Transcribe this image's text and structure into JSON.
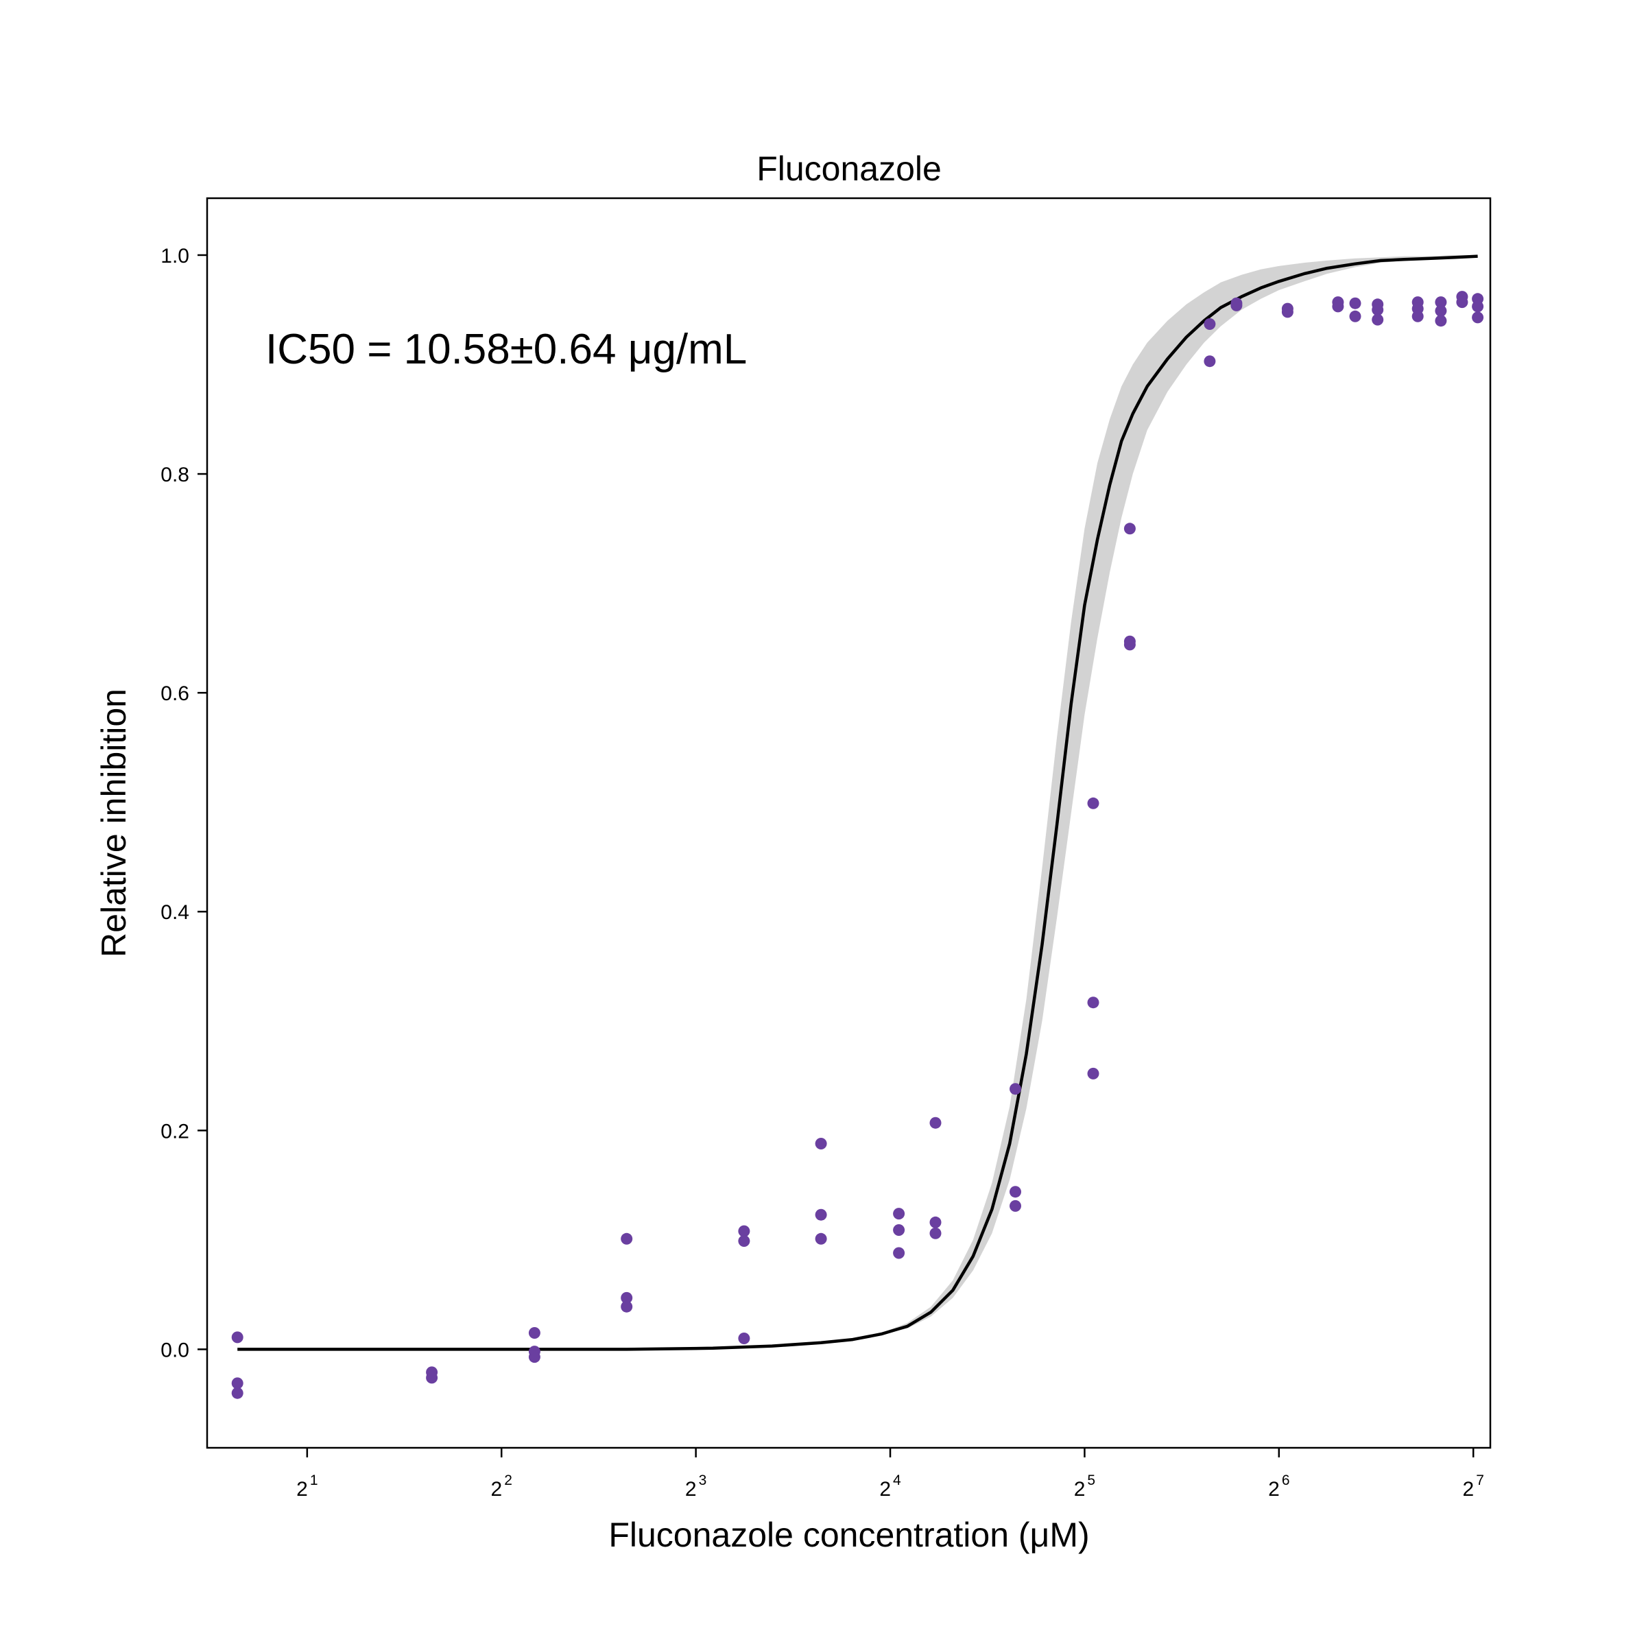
{
  "chart_data": {
    "type": "scatter",
    "title": "Fluconazole",
    "xlabel": "Fluconazole concentration (μM)",
    "ylabel": "Relative inhibition",
    "annotation": "IC50 = 10.58±0.64 μg/mL",
    "x_scale": "log2",
    "xlim": [
      1.4,
      136
    ],
    "ylim": [
      -0.09,
      1.052
    ],
    "x_ticks": [
      {
        "base": "2",
        "exp": "1",
        "value": 2
      },
      {
        "base": "2",
        "exp": "2",
        "value": 4
      },
      {
        "base": "2",
        "exp": "3",
        "value": 8
      },
      {
        "base": "2",
        "exp": "4",
        "value": 16
      },
      {
        "base": "2",
        "exp": "5",
        "value": 32
      },
      {
        "base": "2",
        "exp": "6",
        "value": 64
      },
      {
        "base": "2",
        "exp": "7",
        "value": 128
      }
    ],
    "y_ticks": [
      {
        "label": "0.0",
        "value": 0.0
      },
      {
        "label": "0.2",
        "value": 0.2
      },
      {
        "label": "0.4",
        "value": 0.4
      },
      {
        "label": "0.6",
        "value": 0.6
      },
      {
        "label": "0.8",
        "value": 0.8
      },
      {
        "label": "1.0",
        "value": 1.0
      }
    ],
    "grid": false,
    "colors": {
      "points": "#6a3fa0",
      "fit": "#000000",
      "band": "#d3d3d3"
    },
    "points": [
      {
        "x": 1.56,
        "y": 0.011
      },
      {
        "x": 1.56,
        "y": -0.031
      },
      {
        "x": 1.56,
        "y": -0.04
      },
      {
        "x": 3.12,
        "y": -0.021
      },
      {
        "x": 3.12,
        "y": -0.026
      },
      {
        "x": 4.5,
        "y": 0.015
      },
      {
        "x": 4.5,
        "y": -0.002
      },
      {
        "x": 4.5,
        "y": -0.007
      },
      {
        "x": 6.25,
        "y": 0.101
      },
      {
        "x": 6.25,
        "y": 0.047
      },
      {
        "x": 6.25,
        "y": 0.039
      },
      {
        "x": 9.5,
        "y": 0.108
      },
      {
        "x": 9.5,
        "y": 0.099
      },
      {
        "x": 9.5,
        "y": 0.01
      },
      {
        "x": 12.5,
        "y": 0.188
      },
      {
        "x": 12.5,
        "y": 0.123
      },
      {
        "x": 12.5,
        "y": 0.101
      },
      {
        "x": 16.5,
        "y": 0.124
      },
      {
        "x": 16.5,
        "y": 0.109
      },
      {
        "x": 16.5,
        "y": 0.088
      },
      {
        "x": 18.8,
        "y": 0.207
      },
      {
        "x": 18.8,
        "y": 0.116
      },
      {
        "x": 18.8,
        "y": 0.106
      },
      {
        "x": 25,
        "y": 0.238
      },
      {
        "x": 25,
        "y": 0.144
      },
      {
        "x": 25,
        "y": 0.131
      },
      {
        "x": 33,
        "y": 0.499
      },
      {
        "x": 33,
        "y": 0.317
      },
      {
        "x": 33,
        "y": 0.252
      },
      {
        "x": 37.6,
        "y": 0.75
      },
      {
        "x": 37.6,
        "y": 0.647
      },
      {
        "x": 37.6,
        "y": 0.644
      },
      {
        "x": 50,
        "y": 0.937
      },
      {
        "x": 50,
        "y": 0.903
      },
      {
        "x": 55,
        "y": 0.956
      },
      {
        "x": 55,
        "y": 0.954
      },
      {
        "x": 66,
        "y": 0.951
      },
      {
        "x": 66,
        "y": 0.948
      },
      {
        "x": 79,
        "y": 0.957
      },
      {
        "x": 79,
        "y": 0.953
      },
      {
        "x": 84,
        "y": 0.956
      },
      {
        "x": 84,
        "y": 0.944
      },
      {
        "x": 91,
        "y": 0.955
      },
      {
        "x": 91,
        "y": 0.95
      },
      {
        "x": 91,
        "y": 0.941
      },
      {
        "x": 105,
        "y": 0.957
      },
      {
        "x": 105,
        "y": 0.951
      },
      {
        "x": 105,
        "y": 0.944
      },
      {
        "x": 114,
        "y": 0.957
      },
      {
        "x": 114,
        "y": 0.949
      },
      {
        "x": 114,
        "y": 0.94
      },
      {
        "x": 123,
        "y": 0.962
      },
      {
        "x": 123,
        "y": 0.957
      },
      {
        "x": 130,
        "y": 0.96
      },
      {
        "x": 130,
        "y": 0.953
      },
      {
        "x": 130,
        "y": 0.943
      }
    ],
    "fit": {
      "x": [
        1.56,
        3.12,
        6.25,
        8.5,
        10.5,
        12.5,
        14.0,
        15.5,
        17.0,
        18.5,
        20.0,
        21.5,
        23.0,
        24.5,
        26.0,
        27.5,
        29.0,
        30.5,
        32.0,
        33.5,
        35.0,
        36.5,
        38.0,
        40.0,
        43.0,
        46.0,
        49.0,
        52.0,
        56.0,
        60.0,
        64.0,
        70.0,
        76.0,
        84.0,
        92.0,
        100.0,
        110.0,
        120.0,
        130.0
      ],
      "y": [
        0.0,
        0.0,
        0.0,
        0.001,
        0.003,
        0.006,
        0.009,
        0.014,
        0.021,
        0.034,
        0.054,
        0.085,
        0.128,
        0.188,
        0.27,
        0.37,
        0.48,
        0.59,
        0.68,
        0.74,
        0.79,
        0.83,
        0.855,
        0.88,
        0.905,
        0.925,
        0.94,
        0.952,
        0.962,
        0.97,
        0.976,
        0.983,
        0.988,
        0.992,
        0.995,
        0.996,
        0.997,
        0.998,
        0.999
      ],
      "lower": [
        0.0,
        0.0,
        0.0,
        0.001,
        0.003,
        0.006,
        0.009,
        0.014,
        0.019,
        0.03,
        0.047,
        0.072,
        0.106,
        0.155,
        0.22,
        0.3,
        0.395,
        0.49,
        0.58,
        0.65,
        0.71,
        0.76,
        0.8,
        0.84,
        0.875,
        0.9,
        0.92,
        0.935,
        0.95,
        0.96,
        0.968,
        0.976,
        0.983,
        0.989,
        0.993,
        0.995,
        0.997,
        0.998,
        0.999
      ],
      "upper": [
        0.0,
        0.0,
        0.0,
        0.001,
        0.003,
        0.006,
        0.009,
        0.015,
        0.024,
        0.039,
        0.063,
        0.1,
        0.152,
        0.222,
        0.32,
        0.44,
        0.56,
        0.665,
        0.75,
        0.81,
        0.85,
        0.88,
        0.9,
        0.92,
        0.94,
        0.955,
        0.966,
        0.975,
        0.982,
        0.987,
        0.99,
        0.993,
        0.995,
        0.997,
        0.998,
        0.999,
        0.999,
        1.0,
        1.0
      ]
    }
  }
}
